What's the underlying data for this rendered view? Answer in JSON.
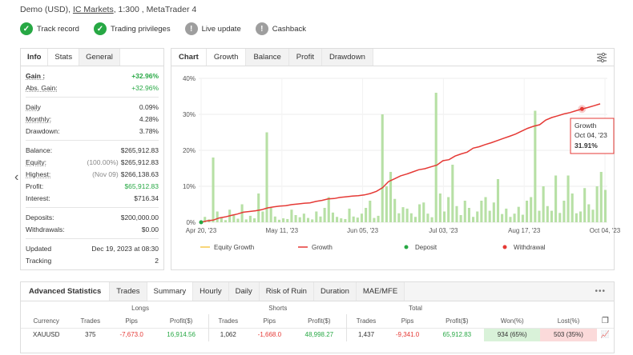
{
  "account": {
    "type": "Demo (USD),",
    "broker": "IC Markets",
    "leverage_platform": ", 1:300 , MetaTrader 4"
  },
  "badges": [
    {
      "label": "Track record",
      "icon": "check-icon",
      "status": "ok"
    },
    {
      "label": "Trading privileges",
      "icon": "check-icon",
      "status": "ok"
    },
    {
      "label": "Live update",
      "icon": "exclamation-icon",
      "status": "grey"
    },
    {
      "label": "Cashback",
      "icon": "exclamation-icon",
      "status": "grey"
    }
  ],
  "info_tabs": [
    "Info",
    "Stats",
    "General"
  ],
  "info": {
    "gain_k": "Gain :",
    "gain_v": "+32.96%",
    "abs_gain_k": "Abs. Gain:",
    "abs_gain_v": "+32.96%",
    "daily_k": "Daily",
    "daily_v": "0.09%",
    "monthly_k": "Monthly:",
    "monthly_v": "4.28%",
    "drawdown_k": "Drawdown:",
    "drawdown_v": "3.78%",
    "balance_k": "Balance:",
    "balance_v": "$265,912.83",
    "equity_k": "Equity:",
    "equity_sub": "(100.00%)",
    "equity_v": "$265,912.83",
    "highest_k": "Highest:",
    "highest_sub": "(Nov 09)",
    "highest_v": "$266,138.63",
    "profit_k": "Profit:",
    "profit_v": "$65,912.83",
    "interest_k": "Interest:",
    "interest_v": "$716.34",
    "deposits_k": "Deposits:",
    "deposits_v": "$200,000.00",
    "withdrawals_k": "Withdrawals:",
    "withdrawals_v": "$0.00",
    "updated_k": "Updated",
    "updated_v": "Dec 19, 2023 at 08:30",
    "tracking_k": "Tracking",
    "tracking_v": "2"
  },
  "chart_tabs": [
    "Chart",
    "Growth",
    "Balance",
    "Profit",
    "Drawdown"
  ],
  "chart_data": {
    "type": "line",
    "x_ticks": [
      "Apr 20, '23",
      "May 11, '23",
      "Jun 05, '23",
      "Jul 03, '23",
      "Aug 17, '23",
      "Oct 04, '23"
    ],
    "y_ticks": [
      "0%",
      "10%",
      "20%",
      "30%",
      "40%"
    ],
    "ylim": [
      0,
      40
    ],
    "series": [
      {
        "name": "Growth",
        "color": "#e53935",
        "values": [
          0,
          0.4,
          0.6,
          1.2,
          1.5,
          1.9,
          2.3,
          2.8,
          3.0,
          3.2,
          3.5,
          4.0,
          4.3,
          4.5,
          4.6,
          4.9,
          5.1,
          5.3,
          5.4,
          5.8,
          6.1,
          6.5,
          6.6,
          6.9,
          7.1,
          7.3,
          7.4,
          7.6,
          8.0,
          8.6,
          9.6,
          11.3,
          12.1,
          12.9,
          13.4,
          14.0,
          14.6,
          14.9,
          15.4,
          15.9,
          17.1,
          17.4,
          18.4,
          19.0,
          19.5,
          20.6,
          21.0,
          21.6,
          22.1,
          22.7,
          23.3,
          23.9,
          24.5,
          25.3,
          26.1,
          26.7,
          27.1,
          28.4,
          29.1,
          29.6,
          30.1,
          30.5,
          31.0,
          31.5,
          31.9,
          32.4,
          32.9
        ]
      },
      {
        "name": "Equity Growth",
        "color": "#f5c84c"
      }
    ],
    "bars_color": "#b7e0a5",
    "bars": [
      0.5,
      1.5,
      0.8,
      18,
      3,
      1.2,
      0.6,
      3.5,
      2.2,
      1.0,
      5,
      0.8,
      1.8,
      1.1,
      8,
      3,
      25,
      4,
      1.6,
      0.7,
      1.1,
      0.9,
      3.5,
      2.0,
      1.4,
      2.4,
      1.2,
      0.8,
      3,
      1.6,
      4,
      7,
      2.7,
      1.5,
      1.1,
      0.9,
      3.8,
      1.6,
      1.3,
      2.4,
      4,
      6,
      1.2,
      1.8,
      30,
      10,
      14,
      6.5,
      2.5,
      4.2,
      3.8,
      2.5,
      1.5,
      5,
      5.5,
      2.4,
      1.4,
      36,
      8,
      3,
      7,
      16,
      4.5,
      2.0,
      6,
      4.0,
      1.5,
      3,
      6,
      7,
      3.2,
      5.5,
      12,
      2.3,
      3.8,
      1.5,
      2.4,
      4.3,
      2.1,
      6,
      7,
      31,
      3.2,
      10,
      4.5,
      3.2,
      13,
      2.6,
      6,
      13,
      8,
      2.5,
      3,
      9.5,
      5,
      3.5,
      10,
      14,
      9
    ],
    "tooltip": {
      "series": "Growth",
      "date": "Oct 04, '23",
      "value": "31.91%"
    },
    "legend": [
      {
        "label": "Equity Growth",
        "kind": "line",
        "color": "#f5c84c"
      },
      {
        "label": "Growth",
        "kind": "line",
        "color": "#e53935"
      },
      {
        "label": "Deposit",
        "kind": "dot",
        "color": "#27a844"
      },
      {
        "label": "Withdrawal",
        "kind": "dot",
        "color": "#e53935"
      }
    ]
  },
  "adv_tabs": [
    "Advanced Statistics",
    "Trades",
    "Summary",
    "Hourly",
    "Daily",
    "Risk of Ruin",
    "Duration",
    "MAE/MFE"
  ],
  "summary": {
    "groups": [
      "Longs",
      "Shorts",
      "Total"
    ],
    "headers": [
      "Currency",
      "Trades",
      "Pips",
      "Profit($)",
      "Trades",
      "Pips",
      "Profit($)",
      "Trades",
      "Pips",
      "Profit($)",
      "Won(%)",
      "Lost(%)"
    ],
    "rows": [
      [
        "XAUUSD",
        "375",
        "-7,673.0",
        "16,914.56",
        "1,062",
        "-1,668.0",
        "48,998.27",
        "1,437",
        "-9,341.0",
        "65,912.83",
        "934 (65%)",
        "503 (35%)"
      ]
    ]
  }
}
